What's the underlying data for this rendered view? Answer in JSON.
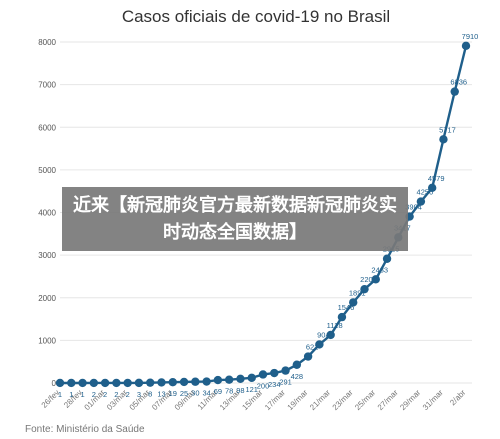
{
  "banner_text": "近来【新冠肺炎官方最新数据新冠肺炎实时动态全国数据】",
  "source_text": "Fonte: Ministério da Saúde",
  "colors": {
    "line": "#1f5f8b",
    "marker": "#1f5f8b",
    "grid": "#e6e6e6"
  },
  "chart_data": {
    "type": "line",
    "title": "Casos oficiais de covid-19 no Brasil",
    "xlabel": "",
    "ylabel": "",
    "ylim": [
      0,
      8000
    ],
    "yticks": [
      0,
      1000,
      2000,
      3000,
      4000,
      5000,
      6000,
      7000,
      8000
    ],
    "grid": true,
    "x": [
      "26/fev",
      "27/fev",
      "28/fev",
      "29/fev",
      "01/mar",
      "02/mar",
      "03/mar",
      "04/mar",
      "05/mar",
      "06/mar",
      "07/mar",
      "08/mar",
      "09/mar",
      "10/mar",
      "11/mar",
      "12/mar",
      "13/mar",
      "14/mar",
      "15/mar",
      "16/mar",
      "17/mar",
      "18/mar",
      "19/mar",
      "20/mar",
      "21/mar",
      "22/mar",
      "23/mar",
      "24/mar",
      "25/mar",
      "26/mar",
      "27/mar",
      "28/mar",
      "29/mar",
      "30/mar",
      "31/mar",
      "01/abr",
      "02/abr"
    ],
    "xtick_labels": [
      "26/fev",
      "28/fev",
      "01/mar",
      "03/mar",
      "05/mar",
      "07/mar",
      "09/mar",
      "11/mar",
      "13/mar",
      "15/mar",
      "17/mar",
      "19/mar",
      "21/mar",
      "23/mar",
      "25/mar",
      "27/mar",
      "29/mar",
      "31/mar",
      "2/abr"
    ],
    "series": [
      {
        "values": [
          1,
          1,
          1,
          2,
          2,
          2,
          2,
          3,
          8,
          13,
          19,
          25,
          30,
          34,
          69,
          78,
          98,
          121,
          200,
          234,
          291,
          428,
          621,
          904,
          1128,
          1546,
          1891,
          2201,
          2433,
          2915,
          3417,
          3904,
          4256,
          4579,
          5717,
          6836,
          7910
        ],
        "labels": [
          "1",
          "1",
          "1",
          "2",
          "2",
          "2",
          "2",
          "3",
          "8",
          "13",
          "19",
          "25",
          "30",
          "34",
          "69",
          "78",
          "98",
          "121",
          "200",
          "234",
          "291",
          "428",
          "621",
          "904",
          "1128",
          "1546",
          "1891",
          "2201",
          "2433",
          "2915",
          "3417",
          "3904",
          "4256",
          "4579",
          "5717",
          "6836",
          "7910"
        ]
      }
    ]
  }
}
